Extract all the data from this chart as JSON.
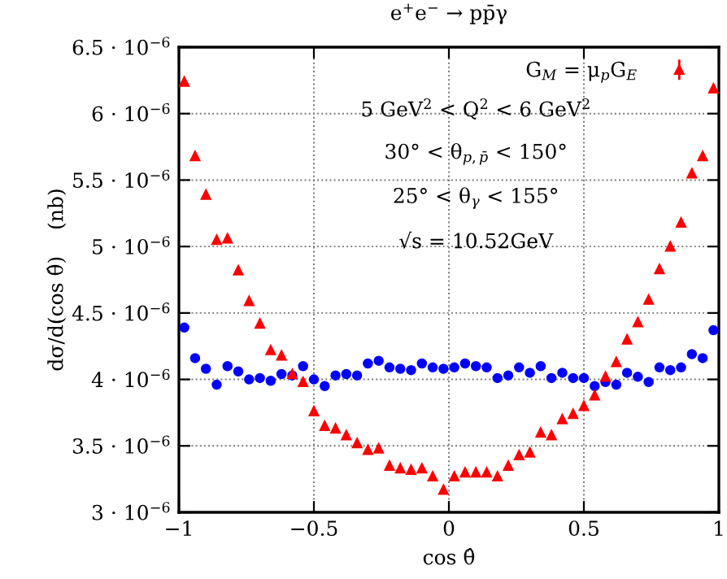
{
  "chart_data": {
    "type": "scatter",
    "title": "e$^{+}$e$^{−}$ → pp̄γ",
    "xlabel": "cos θ̂",
    "ylabel": "dσ/d(cos θ̂)    (nb)",
    "annotations": [
      "5 GeV$^{2}$ < Q$^{2}$ < 6 GeV$^{2}$",
      "30° < θ$_{p,p̄}$ < 150°",
      "25° < θ$_{γ}$ < 155°",
      "√s = 10.52GeV"
    ],
    "x": [
      -0.98,
      -0.94,
      -0.9,
      -0.86,
      -0.82,
      -0.78,
      -0.74,
      -0.7,
      -0.66,
      -0.62,
      -0.58,
      -0.54,
      -0.5,
      -0.46,
      -0.42,
      -0.38,
      -0.34,
      -0.3,
      -0.26,
      -0.22,
      -0.18,
      -0.14,
      -0.1,
      -0.06,
      -0.02,
      0.02,
      0.06,
      0.1,
      0.14,
      0.18,
      0.22,
      0.26,
      0.3,
      0.34,
      0.38,
      0.42,
      0.46,
      0.5,
      0.54,
      0.58,
      0.62,
      0.66,
      0.7,
      0.74,
      0.78,
      0.82,
      0.86,
      0.9,
      0.94,
      0.98
    ],
    "series": [
      {
        "name": "G$_{M}$ = μ$_{p}$G$_{E}$",
        "color": "#ff0000",
        "marker": "triangle",
        "errors": [
          3e-08,
          3e-08,
          3e-08,
          3e-08,
          3e-08,
          3e-08,
          3e-08,
          3e-08,
          3e-08,
          3e-08,
          3e-08,
          3e-08,
          3e-08,
          3e-08,
          3e-08,
          3e-08,
          3e-08,
          3e-08,
          3e-08,
          3e-08,
          3e-08,
          3e-08,
          3e-08,
          3e-08,
          3e-08,
          3e-08,
          3e-08,
          3e-08,
          3e-08,
          3e-08,
          3e-08,
          3e-08,
          3e-08,
          3e-08,
          3e-08,
          3e-08,
          3e-08,
          3e-08,
          3e-08,
          3e-08,
          3e-08,
          3e-08,
          3e-08,
          3e-08,
          3e-08,
          3e-08,
          3e-08,
          3e-08,
          3e-08,
          3e-08
        ],
        "values": [
          6.24e-06,
          5.68e-06,
          5.39e-06,
          5.05e-06,
          5.06e-06,
          4.82e-06,
          4.59e-06,
          4.42e-06,
          4.22e-06,
          4.18e-06,
          4.04e-06,
          3.98e-06,
          3.76e-06,
          3.65e-06,
          3.63e-06,
          3.58e-06,
          3.52e-06,
          3.47e-06,
          3.48e-06,
          3.35e-06,
          3.33e-06,
          3.32e-06,
          3.33e-06,
          3.27e-06,
          3.17e-06,
          3.27e-06,
          3.3e-06,
          3.3e-06,
          3.3e-06,
          3.27e-06,
          3.35e-06,
          3.43e-06,
          3.45e-06,
          3.6e-06,
          3.58e-06,
          3.7e-06,
          3.74e-06,
          3.8e-06,
          3.88e-06,
          4.02e-06,
          4.13e-06,
          4.3e-06,
          4.43e-06,
          4.6e-06,
          4.83e-06,
          5e-06,
          5.18e-06,
          5.55e-06,
          5.68e-06,
          6.19e-06
        ]
      },
      {
        "color": "#0000ff",
        "marker": "circle",
        "errors": [
          2e-08,
          2e-08,
          2e-08,
          2e-08,
          2e-08,
          2e-08,
          2e-08,
          2e-08,
          2e-08,
          2e-08,
          2e-08,
          2e-08,
          2e-08,
          2e-08,
          2e-08,
          2e-08,
          2e-08,
          2e-08,
          2e-08,
          2e-08,
          2e-08,
          2e-08,
          2e-08,
          2e-08,
          2e-08,
          2e-08,
          2e-08,
          2e-08,
          2e-08,
          2e-08,
          2e-08,
          2e-08,
          2e-08,
          2e-08,
          2e-08,
          2e-08,
          2e-08,
          2e-08,
          2e-08,
          2e-08,
          2e-08,
          2e-08,
          2e-08,
          2e-08,
          2e-08,
          2e-08,
          2e-08,
          2e-08,
          2e-08,
          2e-08
        ],
        "values": [
          4.39e-06,
          4.16e-06,
          4.08e-06,
          3.96e-06,
          4.1e-06,
          4.06e-06,
          4e-06,
          4.01e-06,
          3.99e-06,
          4.04e-06,
          4.03e-06,
          4.1e-06,
          4e-06,
          3.95e-06,
          4.03e-06,
          4.04e-06,
          4.03e-06,
          4.12e-06,
          4.14e-06,
          4.09e-06,
          4.08e-06,
          4.07e-06,
          4.12e-06,
          4.09e-06,
          4.08e-06,
          4.09e-06,
          4.12e-06,
          4.1e-06,
          4.09e-06,
          4.01e-06,
          4.03e-06,
          4.09e-06,
          4.05e-06,
          4.1e-06,
          4.01e-06,
          4.05e-06,
          4.01e-06,
          4.01e-06,
          3.95e-06,
          3.98e-06,
          3.96e-06,
          4.05e-06,
          4.02e-06,
          3.98e-06,
          4.09e-06,
          4.07e-06,
          4.09e-06,
          4.19e-06,
          4.16e-06,
          4.37e-06
        ]
      }
    ],
    "xlim": [
      -1,
      1
    ],
    "xticks": [
      {
        "value": -1,
        "label": "−1"
      },
      {
        "value": -0.5,
        "label": "−0.5"
      },
      0,
      0.5,
      1
    ],
    "ylim": [
      3e-06,
      6.5e-06
    ],
    "yticks": [
      {
        "value": 3e-06,
        "label": "3 · 10$^{−6}$"
      },
      {
        "value": 3.5e-06,
        "label": "3.5 · 10$^{−6}$"
      },
      {
        "value": 4e-06,
        "label": "4 · 10$^{−6}$"
      },
      {
        "value": 4.5e-06,
        "label": "4.5 · 10$^{−6}$"
      },
      {
        "value": 5e-06,
        "label": "5 · 10$^{−6}$"
      },
      {
        "value": 5.5e-06,
        "label": "5.5 · 10$^{−6}$"
      },
      {
        "value": 6e-06,
        "label": "6 · 10$^{−6}$"
      },
      {
        "value": 6.5e-06,
        "label": "6.5 · 10$^{−6}$"
      }
    ],
    "grid": true,
    "legend": "top right",
    "line_style": "dotted"
  }
}
